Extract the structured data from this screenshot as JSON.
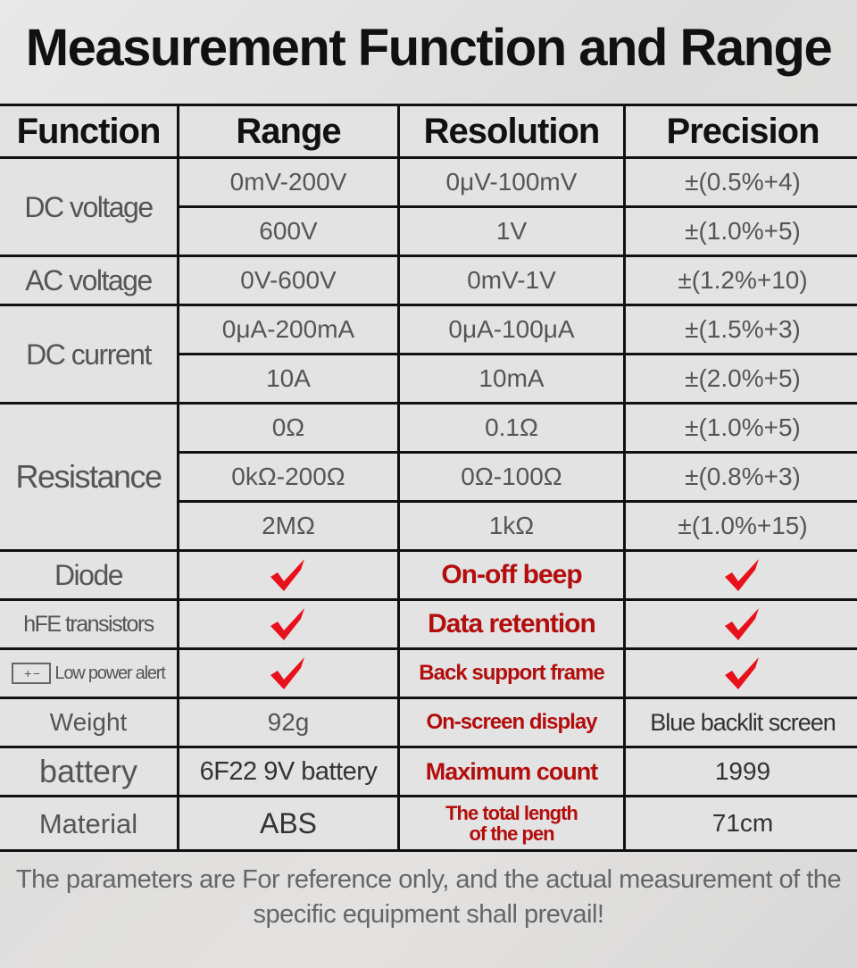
{
  "title": "Measurement Function and Range",
  "headers": [
    "Function",
    "Range",
    "Resolution",
    "Precision"
  ],
  "measure": [
    {
      "function": "DC voltage",
      "rows": [
        [
          "0mV-200V",
          "0μV-100mV",
          "±(0.5%+4)"
        ],
        [
          "600V",
          "1V",
          "±(1.0%+5)"
        ]
      ]
    },
    {
      "function": "AC voltage",
      "rows": [
        [
          "0V-600V",
          "0mV-1V",
          "±(1.2%+10)"
        ]
      ]
    },
    {
      "function": "DC current",
      "rows": [
        [
          "0μA-200mA",
          "0μA-100μA",
          "±(1.5%+3)"
        ],
        [
          "10A",
          "10mA",
          "±(2.0%+5)"
        ]
      ]
    },
    {
      "function": "Resistance",
      "rows": [
        [
          "0Ω",
          "0.1Ω",
          "±(1.0%+5)"
        ],
        [
          "0kΩ-200Ω",
          "0Ω-100Ω",
          "±(0.8%+3)"
        ],
        [
          "2MΩ",
          "1kΩ",
          "±(1.0%+15)"
        ]
      ]
    }
  ],
  "features": [
    {
      "label": "Diode",
      "feature": "On-off beep"
    },
    {
      "label": "hFE transistors",
      "feature": "Data retention"
    },
    {
      "label": "Low power alert",
      "feature": "Back support frame"
    }
  ],
  "specs": [
    {
      "label": "Weight",
      "value": "92g",
      "feature": "On-screen display",
      "feature_value": "Blue backlit screen"
    },
    {
      "label": "battery",
      "value": "6F22 9V battery",
      "feature": "Maximum count",
      "feature_value": "1999"
    },
    {
      "label": "Material",
      "value": "ABS",
      "feature": "The total length of the pen",
      "feature_value": "71cm"
    }
  ],
  "note": "The parameters are For reference only, and the actual measurement of the specific equipment shall prevail!",
  "colors": {
    "check": "#e8101a",
    "feature_text": "#b30d0d"
  }
}
